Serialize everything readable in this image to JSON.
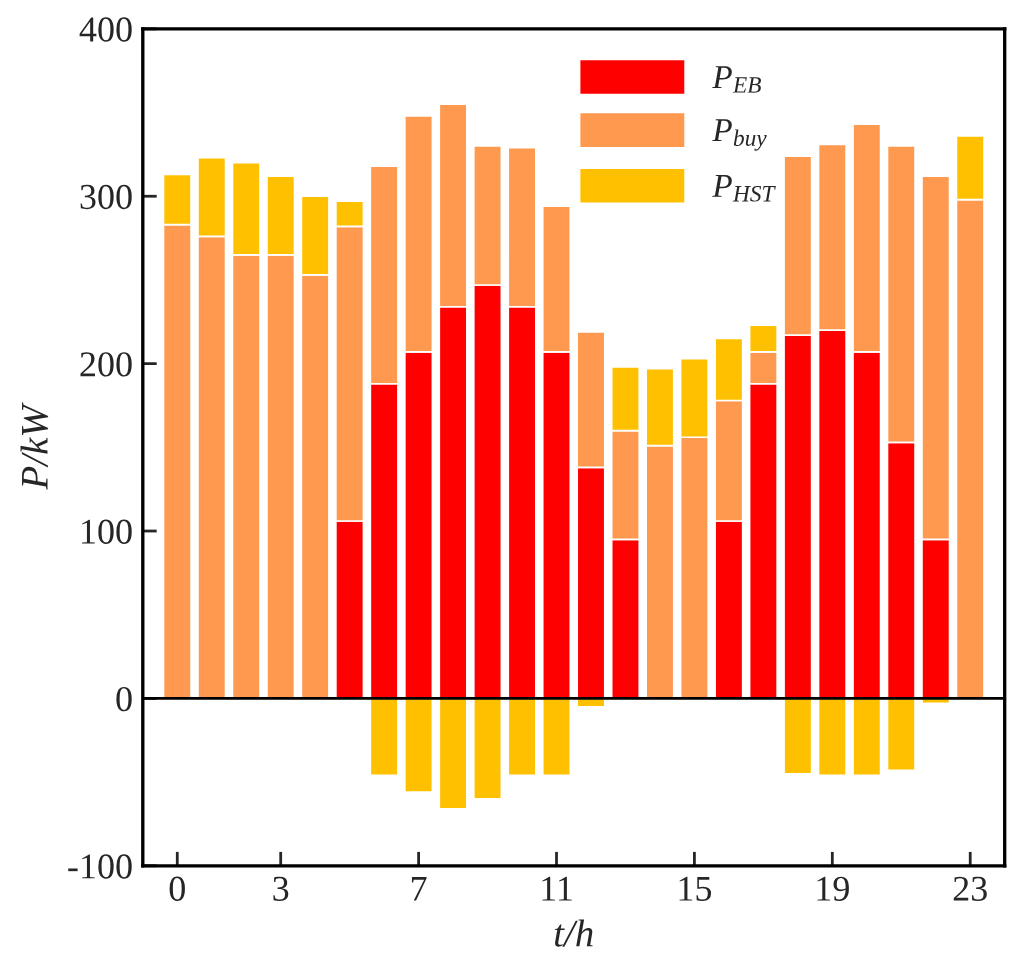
{
  "chart_data": {
    "type": "bar",
    "stacked": true,
    "xlabel": "t/h",
    "ylabel": "P/kW",
    "x": [
      0,
      1,
      2,
      3,
      4,
      5,
      6,
      7,
      8,
      9,
      10,
      11,
      12,
      13,
      14,
      15,
      16,
      17,
      18,
      19,
      20,
      21,
      22,
      23
    ],
    "xlim": [
      -1,
      24
    ],
    "xticks": [
      0,
      3,
      7,
      11,
      15,
      19,
      23
    ],
    "ylim": [
      -100,
      400
    ],
    "yticks": [
      -100,
      0,
      100,
      200,
      300,
      400
    ],
    "legend": "top right",
    "ref_lines": [
      {
        "axis": "y",
        "value": 0,
        "color": "#000000"
      }
    ],
    "series": [
      {
        "name": "P$_{EB}$",
        "color": "#ff0000",
        "values": [
          0,
          0,
          0,
          0,
          0,
          106,
          188,
          207,
          234,
          247,
          234,
          207,
          138,
          95,
          0,
          0,
          106,
          188,
          217,
          220,
          207,
          153,
          95,
          0
        ]
      },
      {
        "name": "P$_{buy}$",
        "color": "#fe994f",
        "values": [
          283,
          276,
          265,
          265,
          253,
          176,
          130,
          141,
          121,
          83,
          95,
          87,
          81,
          65,
          151,
          156,
          72,
          19,
          107,
          111,
          136,
          177,
          217,
          298
        ]
      },
      {
        "name": "P$_{HST}$",
        "color": "#ffc000",
        "values": [
          30,
          47,
          55,
          47,
          47,
          15,
          -46,
          -56,
          -66,
          -60,
          -46,
          -46,
          -5,
          38,
          46,
          47,
          37,
          16,
          -45,
          -46,
          -46,
          -43,
          -3,
          38
        ]
      }
    ]
  }
}
